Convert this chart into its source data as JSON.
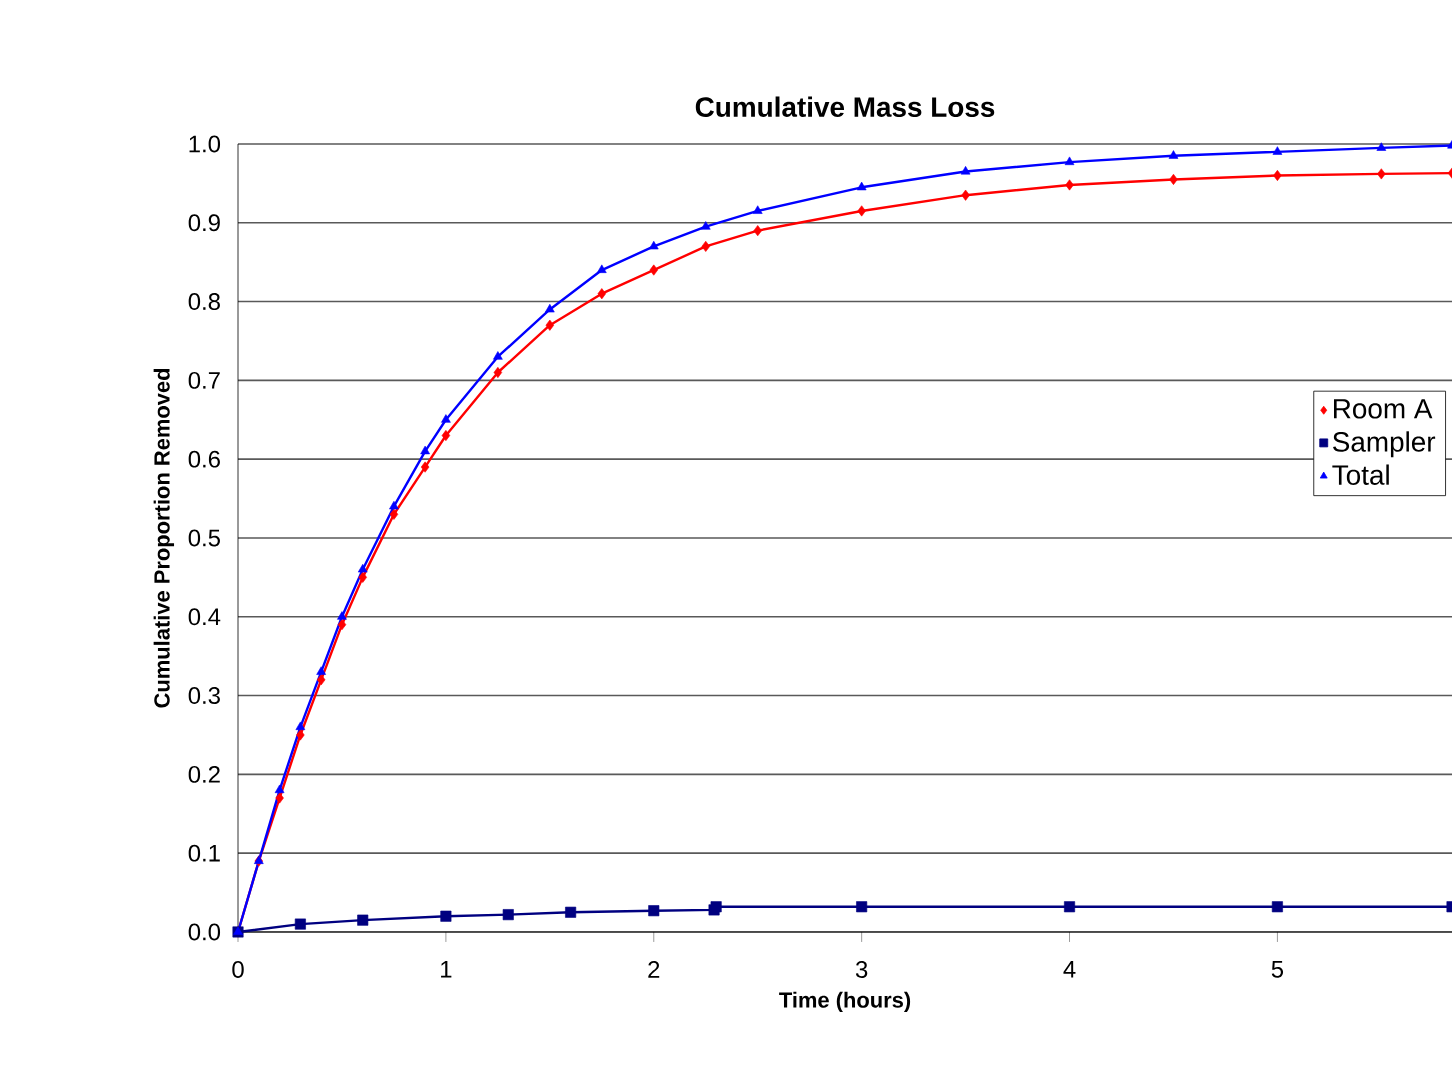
{
  "chart_data": {
    "type": "line",
    "title": "Cumulative Mass Loss",
    "xlabel": "Time (hours)",
    "ylabel": "Cumulative Proportion Removed",
    "xlim": [
      0,
      5.84
    ],
    "xticks": [
      0,
      1,
      2,
      3,
      4,
      5
    ],
    "ylim": [
      0,
      1
    ],
    "yticks": [
      {
        "value": 0,
        "label": "0.0"
      },
      {
        "value": 0.1,
        "label": "0.1"
      },
      {
        "value": 0.2,
        "label": "0.2"
      },
      {
        "value": 0.3,
        "label": "0.3"
      },
      {
        "value": 0.4,
        "label": "0.4"
      },
      {
        "value": 0.5,
        "label": "0.5"
      },
      {
        "value": 0.6,
        "label": "0.6"
      },
      {
        "value": 0.7,
        "label": "0.7"
      },
      {
        "value": 0.8,
        "label": "0.8"
      },
      {
        "value": 0.9,
        "label": "0.9"
      },
      {
        "value": 1,
        "label": "1.0"
      }
    ],
    "grid": "y",
    "legend": "right",
    "series": [
      {
        "name": "Room A",
        "color": "#ff0000",
        "marker": "diamond",
        "x": [
          0,
          0.1,
          0.2,
          0.3,
          0.4,
          0.5,
          0.6,
          0.75,
          0.9,
          1.0,
          1.25,
          1.5,
          1.75,
          2.0,
          2.25,
          2.5,
          3,
          3.5,
          4,
          4.5,
          5,
          5.5,
          5.84
        ],
        "values": [
          0,
          0.09,
          0.17,
          0.25,
          0.32,
          0.39,
          0.45,
          0.53,
          0.59,
          0.63,
          0.71,
          0.77,
          0.81,
          0.84,
          0.87,
          0.89,
          0.915,
          0.935,
          0.948,
          0.955,
          0.96,
          0.962,
          0.963
        ]
      },
      {
        "name": "Sampler",
        "color": "#000080",
        "marker": "square",
        "x": [
          0,
          0.3,
          0.6,
          1.0,
          1.3,
          1.6,
          2.0,
          2.29,
          2.3,
          3,
          4,
          5,
          5.84
        ],
        "values": [
          0,
          0.01,
          0.015,
          0.02,
          0.022,
          0.025,
          0.027,
          0.028,
          0.032,
          0.032,
          0.032,
          0.032,
          0.032
        ]
      },
      {
        "name": "Total",
        "color": "#0000ff",
        "marker": "triangle",
        "x": [
          0,
          0.1,
          0.2,
          0.3,
          0.4,
          0.5,
          0.6,
          0.75,
          0.9,
          1.0,
          1.25,
          1.5,
          1.75,
          2.0,
          2.25,
          2.5,
          3,
          3.5,
          4,
          4.5,
          5,
          5.5,
          5.84
        ],
        "values": [
          0,
          0.09,
          0.18,
          0.26,
          0.33,
          0.4,
          0.46,
          0.54,
          0.61,
          0.65,
          0.73,
          0.79,
          0.84,
          0.87,
          0.895,
          0.915,
          0.945,
          0.965,
          0.977,
          0.985,
          0.99,
          0.995,
          0.998
        ]
      }
    ]
  }
}
